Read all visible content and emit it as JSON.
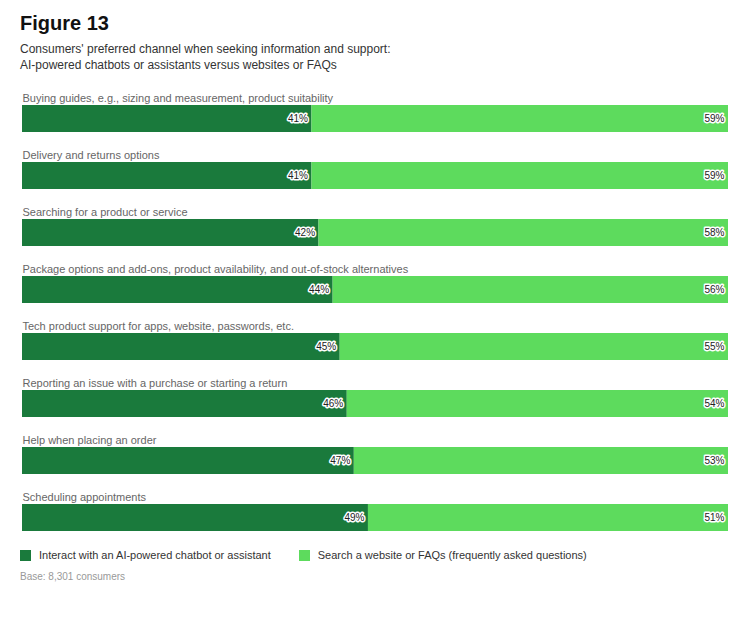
{
  "chart_data": {
    "type": "bar",
    "orientation": "horizontal",
    "stacked": true,
    "title": "Figure 13",
    "subtitle": [
      "Consumers' preferred channel when seeking information and support:",
      "AI-powered chatbots or assistants versus websites or FAQs"
    ],
    "categories": [
      "Buying guides, e.g., sizing and measurement, product suitability",
      "Delivery and returns options",
      "Searching for a product or service",
      "Package options and add-ons, product availability, and out-of-stock alternatives",
      "Tech product support for apps, website, passwords, etc.",
      "Reporting an issue with a purchase or starting a return",
      "Help when placing an order",
      "Scheduling appointments"
    ],
    "series": [
      {
        "name": "Interact with an AI-powered chatbot or assistant",
        "color": "#1a7a3c",
        "values": [
          41,
          41,
          42,
          44,
          45,
          46,
          47,
          49
        ],
        "value_labels": [
          "41%",
          "41%",
          "42%",
          "44%",
          "45%",
          "46%",
          "47%",
          "49%"
        ]
      },
      {
        "name": "Search a website or FAQs (frequently asked questions)",
        "color": "#5ddb5d",
        "values": [
          59,
          59,
          58,
          56,
          55,
          54,
          53,
          51
        ],
        "value_labels": [
          "59%",
          "59%",
          "58%",
          "56%",
          "55%",
          "54%",
          "53%",
          "51%"
        ]
      }
    ],
    "xlim": [
      0,
      100
    ],
    "tick_labels": false,
    "grid": false,
    "legend": "bottom",
    "data_labels": true,
    "annotations": [
      "Base: 8,301 consumers"
    ]
  }
}
